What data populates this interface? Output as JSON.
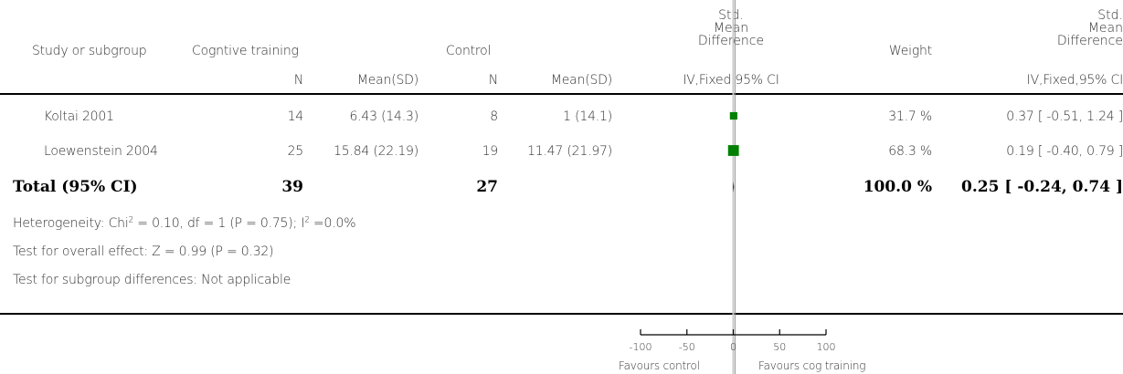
{
  "header": {
    "study": "Study or subgroup",
    "group1": "Cogntive training",
    "group2": "Control",
    "smd_plot": [
      "Std.",
      "Mean",
      "Difference"
    ],
    "weight": "Weight",
    "smd_text": [
      "Std.",
      "Mean",
      "Difference"
    ],
    "sub_n1": "N",
    "sub_mean1": "Mean(SD)",
    "sub_n2": "N",
    "sub_mean2": "Mean(SD)",
    "sub_plot": "IV,Fixed,95% CI",
    "sub_text": "IV,Fixed,95% CI"
  },
  "rows": [
    {
      "study": "Koltai 2001",
      "n1": "14",
      "mean1": "6.43 (14.3)",
      "n2": "8",
      "mean2": "1 (14.1)",
      "weight": "31.7 %",
      "ci": "0.37 [ -0.51, 1.24 ]"
    },
    {
      "study": "Loewenstein 2004",
      "n1": "25",
      "mean1": "15.84 (22.19)",
      "n2": "19",
      "mean2": "11.47 (21.97)",
      "weight": "68.3 %",
      "ci": "0.19 [ -0.40, 0.79 ]"
    }
  ],
  "total": {
    "label": "Total (95% CI)",
    "n1": "39",
    "n2": "27",
    "weight": "100.0 %",
    "ci": "0.25 [ -0.24, 0.74 ]"
  },
  "footnotes": {
    "heterogeneity_a": "Heterogeneity: Chi",
    "heterogeneity_b": " = 0.10, df = 1 (P = 0.75); I",
    "heterogeneity_c": " =0.0%",
    "sup2": "2",
    "overall": "Test for overall effect: Z = 0.99 (P = 0.32)",
    "subgroup": "Test for subgroup differences: Not applicable"
  },
  "axis": {
    "favours_left": "Favours control",
    "favours_right": "Favours cog training"
  },
  "chart_data": {
    "type": "forest",
    "x_ticks": [
      -100,
      -50,
      0,
      50,
      100
    ],
    "xlim": [
      -100,
      100
    ],
    "studies": [
      {
        "name": "Koltai 2001",
        "estimate": 0.37,
        "lower": -0.51,
        "upper": 1.24,
        "weight": 31.7
      },
      {
        "name": "Loewenstein 2004",
        "estimate": 0.19,
        "lower": -0.4,
        "upper": 0.79,
        "weight": 68.3
      }
    ],
    "pooled": {
      "estimate": 0.25,
      "lower": -0.24,
      "upper": 0.74
    },
    "marker_color": "#008000"
  }
}
